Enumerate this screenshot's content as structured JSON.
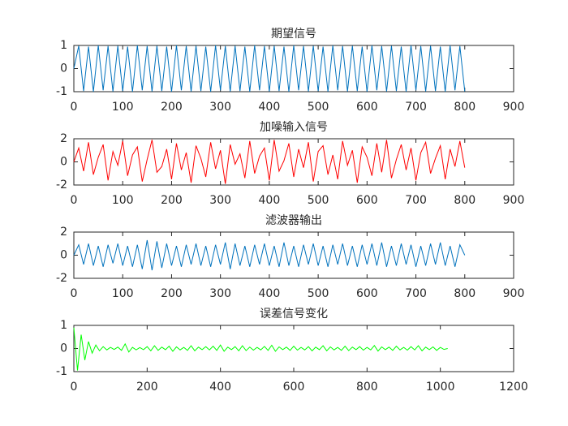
{
  "chart_data": [
    {
      "type": "line",
      "title": "期望信号",
      "color": "#0072BD",
      "x": [
        0,
        10,
        20,
        30,
        40,
        50,
        60,
        70,
        80,
        90,
        100,
        110,
        120,
        130,
        140,
        150,
        160,
        170,
        180,
        190,
        200,
        210,
        220,
        230,
        240,
        250,
        260,
        270,
        280,
        290,
        300,
        310,
        320,
        330,
        340,
        350,
        360,
        370,
        380,
        390,
        400,
        410,
        420,
        430,
        440,
        450,
        460,
        470,
        480,
        490,
        500,
        510,
        520,
        530,
        540,
        550,
        560,
        570,
        580,
        590,
        600,
        610,
        620,
        630,
        640,
        650,
        660,
        670,
        680,
        690,
        700,
        710,
        720,
        730,
        740,
        750,
        760,
        770,
        780,
        790,
        800
      ],
      "values": [
        0,
        0.98,
        -0.97,
        0.95,
        -1,
        1,
        -0.94,
        0.97,
        -0.99,
        0.98,
        -0.97,
        0.95,
        -1,
        1,
        -0.94,
        0.97,
        -0.99,
        0.98,
        -0.97,
        0.95,
        -1,
        1,
        -0.94,
        0.97,
        -0.99,
        0.98,
        -0.97,
        0.95,
        -1,
        1,
        -0.94,
        0.97,
        -0.99,
        0.98,
        -0.97,
        0.95,
        -1,
        1,
        -0.94,
        0.97,
        -0.99,
        0.98,
        -0.97,
        0.95,
        -1,
        1,
        -0.94,
        0.97,
        -0.99,
        0.98,
        -0.97,
        0.95,
        -1,
        1,
        -0.94,
        0.97,
        -0.99,
        0.98,
        -0.97,
        0.95,
        -1,
        1,
        -0.94,
        0.97,
        -0.99,
        0.98,
        -0.97,
        0.95,
        -1,
        1,
        -0.94,
        0.97,
        -0.99,
        0.98,
        -0.97,
        0.95,
        -1,
        1,
        -0.94,
        0.97,
        -0.99
      ],
      "xlim": [
        0,
        900
      ],
      "xticks": [
        0,
        100,
        200,
        300,
        400,
        500,
        600,
        700,
        800,
        900
      ],
      "ylim": [
        -1,
        1
      ],
      "yticks": [
        -1,
        0,
        1
      ]
    },
    {
      "type": "line",
      "title": "加噪输入信号",
      "color": "#ff0000",
      "x": [
        0,
        10,
        20,
        30,
        40,
        50,
        60,
        70,
        80,
        90,
        100,
        110,
        120,
        130,
        140,
        150,
        160,
        170,
        180,
        190,
        200,
        210,
        220,
        230,
        240,
        250,
        260,
        270,
        280,
        290,
        300,
        310,
        320,
        330,
        340,
        350,
        360,
        370,
        380,
        390,
        400,
        410,
        420,
        430,
        440,
        450,
        460,
        470,
        480,
        490,
        500,
        510,
        520,
        530,
        540,
        550,
        560,
        570,
        580,
        590,
        600,
        610,
        620,
        630,
        640,
        650,
        660,
        670,
        680,
        690,
        700,
        710,
        720,
        730,
        740,
        750,
        760,
        770,
        780,
        790,
        800
      ],
      "values": [
        0,
        1.2,
        -0.8,
        1.7,
        -1.1,
        0.4,
        1.5,
        -1.6,
        0.9,
        -0.3,
        1.8,
        -1.2,
        0.6,
        1.3,
        -1.7,
        0.2,
        1.9,
        -0.9,
        -0.4,
        1.1,
        -1.5,
        1.6,
        -0.7,
        0.8,
        -1.8,
        1.4,
        0.3,
        -1.3,
        1.7,
        -0.6,
        1.0,
        -1.9,
        1.5,
        -0.2,
        0.7,
        -1.4,
        1.8,
        -1.0,
        0.5,
        1.2,
        -1.6,
        1.9,
        -0.8,
        0.1,
        1.6,
        -1.3,
        1.1,
        -0.5,
        1.7,
        -1.7,
        0.9,
        1.4,
        -1.1,
        0.6,
        -1.5,
        1.8,
        -0.3,
        1.0,
        -1.8,
        1.3,
        0.4,
        -1.2,
        1.6,
        -0.9,
        1.9,
        -1.4,
        0.2,
        1.5,
        -0.7,
        1.2,
        -1.6,
        0.8,
        1.7,
        -1.0,
        0.3,
        1.4,
        -1.5,
        1.1,
        -0.4,
        1.8,
        -0.5
      ],
      "xlim": [
        0,
        900
      ],
      "xticks": [
        0,
        100,
        200,
        300,
        400,
        500,
        600,
        700,
        800,
        900
      ],
      "ylim": [
        -2,
        2
      ],
      "yticks": [
        -2,
        0,
        2
      ]
    },
    {
      "type": "line",
      "title": "滤波器输出",
      "color": "#0072BD",
      "x": [
        0,
        10,
        20,
        30,
        40,
        50,
        60,
        70,
        80,
        90,
        100,
        110,
        120,
        130,
        140,
        150,
        160,
        170,
        180,
        190,
        200,
        210,
        220,
        230,
        240,
        250,
        260,
        270,
        280,
        290,
        300,
        310,
        320,
        330,
        340,
        350,
        360,
        370,
        380,
        390,
        400,
        410,
        420,
        430,
        440,
        450,
        460,
        470,
        480,
        490,
        500,
        510,
        520,
        530,
        540,
        550,
        560,
        570,
        580,
        590,
        600,
        610,
        620,
        630,
        640,
        650,
        660,
        670,
        680,
        690,
        700,
        710,
        720,
        730,
        740,
        750,
        760,
        770,
        780,
        790,
        800
      ],
      "values": [
        0,
        0.9,
        -0.8,
        1.0,
        -0.9,
        0.8,
        -1.0,
        0.9,
        -0.7,
        1.0,
        -0.9,
        0.8,
        -1.0,
        0.9,
        -1.2,
        1.3,
        -1.3,
        1.2,
        -1.1,
        1.0,
        -0.9,
        0.8,
        -1.0,
        0.9,
        -0.8,
        1.0,
        -0.9,
        0.8,
        -1.0,
        0.9,
        -0.8,
        1.1,
        -1.2,
        1.0,
        -0.9,
        0.8,
        -1.0,
        0.9,
        -0.8,
        1.0,
        -0.9,
        0.8,
        -1.0,
        1.1,
        -0.9,
        0.8,
        -1.0,
        0.9,
        -0.8,
        1.0,
        -0.9,
        0.8,
        -1.0,
        0.9,
        -0.8,
        1.0,
        -0.9,
        0.8,
        -1.0,
        0.9,
        -0.8,
        1.0,
        -0.9,
        1.1,
        -1.0,
        0.8,
        -0.9,
        1.0,
        -0.8,
        0.9,
        -1.0,
        0.8,
        -0.9,
        1.0,
        -0.8,
        1.1,
        -0.9,
        0.8,
        -1.0,
        0.9,
        0
      ],
      "xlim": [
        0,
        900
      ],
      "xticks": [
        0,
        100,
        200,
        300,
        400,
        500,
        600,
        700,
        800,
        900
      ],
      "ylim": [
        -2,
        2
      ],
      "yticks": [
        -2,
        0,
        2
      ]
    },
    {
      "type": "line",
      "title": "误差信号变化",
      "color": "#00ff00",
      "x": [
        0,
        10,
        20,
        30,
        40,
        50,
        60,
        70,
        80,
        90,
        100,
        110,
        120,
        130,
        140,
        150,
        160,
        170,
        180,
        190,
        200,
        210,
        220,
        230,
        240,
        250,
        260,
        270,
        280,
        290,
        300,
        310,
        320,
        330,
        340,
        350,
        360,
        370,
        380,
        390,
        400,
        410,
        420,
        430,
        440,
        450,
        460,
        470,
        480,
        490,
        500,
        510,
        520,
        530,
        540,
        550,
        560,
        570,
        580,
        590,
        600,
        610,
        620,
        630,
        640,
        650,
        660,
        670,
        680,
        690,
        700,
        710,
        720,
        730,
        740,
        750,
        760,
        770,
        780,
        790,
        800,
        810,
        820,
        830,
        840,
        850,
        860,
        870,
        880,
        890,
        900,
        910,
        920,
        930,
        940,
        950,
        960,
        970,
        980,
        990,
        1000,
        1010,
        1020
      ],
      "values": [
        0.9,
        -0.95,
        0.6,
        -0.5,
        0.3,
        -0.2,
        0.15,
        -0.1,
        0.08,
        -0.06,
        0.05,
        -0.04,
        0.06,
        -0.08,
        0.2,
        -0.15,
        0.05,
        -0.06,
        0.04,
        -0.05,
        0.08,
        -0.1,
        0.12,
        -0.08,
        0.06,
        -0.05,
        0.1,
        -0.12,
        0.07,
        -0.06,
        0.05,
        -0.08,
        0.12,
        -0.1,
        0.06,
        -0.05,
        0.08,
        -0.06,
        0.1,
        -0.08,
        0.15,
        -0.12,
        0.06,
        -0.05,
        0.08,
        -0.1,
        0.12,
        -0.09,
        0.06,
        -0.07,
        0.05,
        -0.06,
        0.09,
        -0.08,
        0.14,
        -0.12,
        0.07,
        -0.05,
        0.06,
        -0.08,
        0.1,
        -0.07,
        0.05,
        -0.06,
        0.08,
        -0.1,
        0.06,
        -0.05,
        0.12,
        -0.1,
        0.07,
        -0.06,
        0.05,
        -0.08,
        0.1,
        -0.09,
        0.06,
        -0.05,
        0.08,
        -0.07,
        0.05,
        -0.06,
        0.13,
        -0.11,
        0.07,
        -0.05,
        0.06,
        -0.08,
        0.1,
        -0.06,
        0.05,
        -0.07,
        0.08,
        -0.06,
        0.12,
        -0.1,
        0.06,
        -0.05,
        0.07,
        -0.08,
        0.05,
        -0.04,
        0
      ],
      "xlim": [
        0,
        1200
      ],
      "xticks": [
        0,
        200,
        400,
        600,
        800,
        1000,
        1200
      ],
      "ylim": [
        -1,
        1
      ],
      "yticks": [
        -1,
        0,
        1
      ]
    }
  ]
}
